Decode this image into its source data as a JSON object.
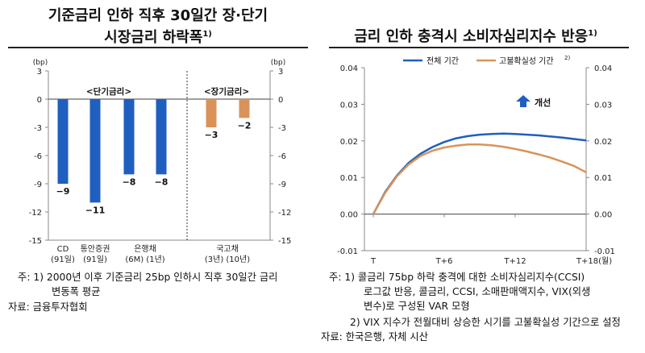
{
  "left": {
    "title_line1": "기준금리 인하 직후 30일간 장·단기",
    "title_line2": "시장금리 하락폭",
    "title_sup": "1)",
    "notes": {
      "note1_line1": "주: 1) 2000년 이후 기준금리 25bp 인하시 직후 30일간 금리",
      "note1_line2": "변동폭 평균",
      "source": "자료: 금융투자협회"
    }
  },
  "right": {
    "title": "금리 인하 충격시 소비자심리지수 반응",
    "title_sup": "1)",
    "improve_label": "개선",
    "notes": {
      "note1_line1": "주: 1) 콜금리 75bp 하락 충격에 대한 소비자심리지수(CCSI)",
      "note1_line2": "로그값 반응, 콜금리, CCSI, 소매판매액지수, VIX(외생",
      "note1_line3": "변수)로 구성된 VAR 모형",
      "note2": "2) VIX 지수가 전월대비 상승한 시기를 고불확실성 기간으로 설정",
      "source": "자료: 한국은행, 자체 시산"
    }
  },
  "colors": {
    "blue": "#1f5fbf",
    "orange": "#d9935a",
    "axis": "#666666"
  },
  "chart_data": [
    {
      "type": "bar",
      "title": "기준금리 인하 직후 30일간 장·단기 시장금리 하락폭",
      "unit_label": "(bp)",
      "ylim": [
        -15,
        3
      ],
      "yticks": [
        "3",
        "0",
        "-3",
        "-6",
        "-9",
        "-12",
        "-15"
      ],
      "groups": [
        "<단기금리>",
        "<장기금리>"
      ],
      "categories": [
        {
          "line1": "CD",
          "line2": "(91일)"
        },
        {
          "line1": "통안증권",
          "line2": "(91일)"
        },
        {
          "line1": "은행채",
          "line2": "(6M)  (1년)"
        },
        {
          "line1": "",
          "line2": ""
        },
        {
          "line1": "국고채",
          "line2": "(3년)      (10년)"
        },
        {
          "line1": "",
          "line2": ""
        }
      ],
      "values": [
        -9,
        -11,
        -8,
        -8,
        -3,
        -2
      ],
      "value_labels": [
        "−9",
        "−11",
        "−8",
        "−8",
        "−3",
        "−2"
      ],
      "series_color": [
        "blue",
        "blue",
        "blue",
        "blue",
        "orange",
        "orange"
      ]
    },
    {
      "type": "line",
      "title": "금리 인하 충격시 소비자심리지수 반응",
      "x": [
        0,
        1,
        2,
        3,
        4,
        5,
        6,
        7,
        8,
        9,
        10,
        11,
        12,
        13,
        14,
        15,
        16,
        17,
        18
      ],
      "xticks": [
        "T",
        "T+6",
        "T+12",
        "T+18(월)"
      ],
      "xtick_positions": [
        0,
        6,
        12,
        18
      ],
      "ylim": [
        -0.01,
        0.04
      ],
      "yticks": [
        "0.04",
        "0.03",
        "0.02",
        "0.01",
        "0.00",
        "-0.01"
      ],
      "series": [
        {
          "name": "전체 기간",
          "color": "blue",
          "values": [
            0.0,
            0.006,
            0.0105,
            0.014,
            0.0165,
            0.0183,
            0.0197,
            0.0207,
            0.0213,
            0.0217,
            0.0219,
            0.022,
            0.0219,
            0.0217,
            0.0215,
            0.0212,
            0.0209,
            0.0205,
            0.0201
          ]
        },
        {
          "name": "고불확실성 기간",
          "name_sup": "2)",
          "color": "orange",
          "values": [
            0.0,
            0.0058,
            0.0103,
            0.0136,
            0.0159,
            0.0173,
            0.0182,
            0.0187,
            0.019,
            0.019,
            0.0188,
            0.0184,
            0.0178,
            0.0171,
            0.0163,
            0.0154,
            0.0143,
            0.0131,
            0.0114
          ]
        }
      ]
    }
  ]
}
